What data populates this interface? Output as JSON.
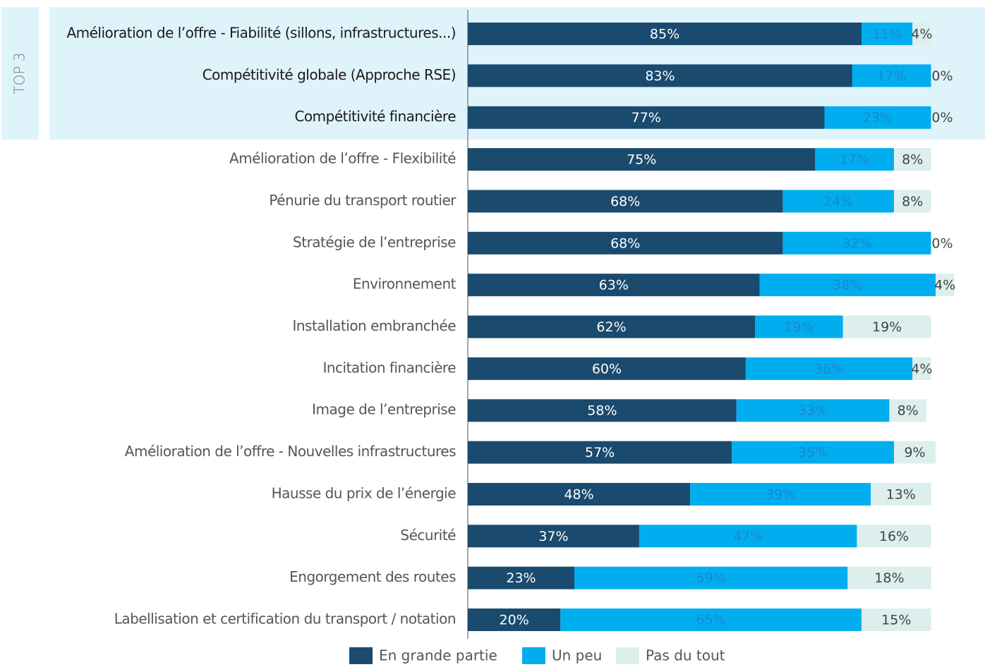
{
  "chart_data": {
    "type": "stacked-barh",
    "annotation": "TOP 3",
    "highlighted_count": 3,
    "categories": [
      "Amélioration de l’offre - Fiabilité (sillons, infrastructures...)",
      "Compétitivité globale (Approche RSE)",
      "Compétitivité financière",
      "Amélioration de l’offre - Flexibilité",
      "Pénurie du transport routier",
      "Stratégie de l’entreprise",
      "Environnement",
      "Installation embranchée",
      "Incitation financière",
      "Image de l’entreprise",
      "Amélioration de l’offre - Nouvelles infrastructures",
      "Hausse du prix de l’énergie",
      "Sécurité",
      "Engorgement des routes",
      "Labellisation et certification du transport / notation"
    ],
    "series": [
      {
        "name": "En grande partie",
        "color": "#1a4a6e",
        "label_color": "#ffffff",
        "values": [
          85,
          83,
          77,
          75,
          68,
          68,
          63,
          62,
          60,
          58,
          57,
          48,
          37,
          23,
          20
        ],
        "value_labels": [
          "85%",
          "83%",
          "77%",
          "75%",
          "68%",
          "68%",
          "63%",
          "62%",
          "60%",
          "58%",
          "57%",
          "48%",
          "37%",
          "23%",
          "20%"
        ]
      },
      {
        "name": "Un peu",
        "color": "#00aeef",
        "label_color": "#1b86cf",
        "values": [
          11,
          17,
          23,
          17,
          24,
          32,
          38,
          19,
          36,
          33,
          35,
          39,
          47,
          59,
          65
        ],
        "value_labels": [
          "11%",
          "17%",
          "23%",
          "17%",
          "24%",
          "32%",
          "38%",
          "19%",
          "36%",
          "33%",
          "35%",
          "39%",
          "47%",
          "59%",
          "65%"
        ]
      },
      {
        "name": "Pas du tout",
        "color": "#dcefed",
        "label_color": "#444444",
        "values": [
          4,
          0,
          0,
          8,
          8,
          0,
          4,
          19,
          4,
          8,
          9,
          13,
          16,
          18,
          15
        ],
        "value_labels": [
          "4%",
          "0%",
          "0%",
          "8%",
          "8%",
          "0%",
          "4%",
          "19%",
          "4%",
          "8%",
          "9%",
          "13%",
          "16%",
          "18%",
          "15%"
        ]
      }
    ]
  }
}
